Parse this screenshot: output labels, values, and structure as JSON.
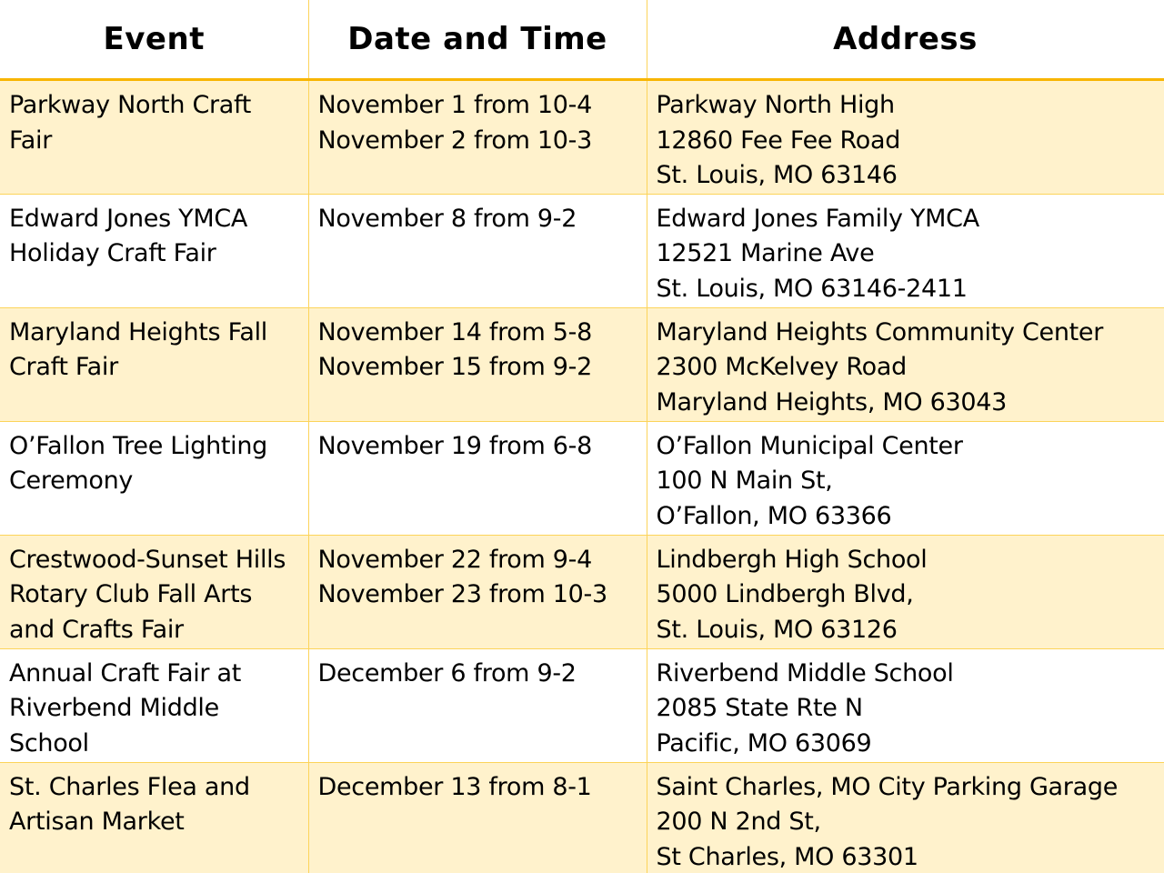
{
  "headers": [
    "Event",
    "Date and Time",
    "Address"
  ],
  "rows": [
    {
      "event": [
        "Parkway North Craft",
        "Fair"
      ],
      "date": [
        "November 1 from 10-4",
        "November 2 from 10-3"
      ],
      "address": [
        "Parkway North High",
        "12860 Fee Fee Road",
        "St. Louis, MO 63146"
      ]
    },
    {
      "event": [
        "Edward Jones YMCA",
        "Holiday Craft Fair"
      ],
      "date": [
        "November 8 from 9-2"
      ],
      "address": [
        "Edward Jones Family YMCA",
        "12521 Marine Ave",
        "St. Louis, MO 63146-2411"
      ]
    },
    {
      "event": [
        "Maryland Heights Fall",
        "Craft Fair"
      ],
      "date": [
        "November 14 from 5-8",
        "November 15 from 9-2"
      ],
      "address": [
        "Maryland Heights Community Center",
        "2300 McKelvey Road",
        "Maryland Heights, MO 63043"
      ]
    },
    {
      "event": [
        "O’Fallon Tree Lighting",
        "Ceremony"
      ],
      "date": [
        "November 19 from 6-8"
      ],
      "address": [
        "O’Fallon Municipal Center",
        "100 N Main St,",
        "O’Fallon, MO 63366"
      ]
    },
    {
      "event": [
        "Crestwood-Sunset Hills",
        "Rotary Club Fall Arts",
        "and Crafts Fair"
      ],
      "date": [
        "November 22 from 9-4",
        "November 23 from 10-3"
      ],
      "address": [
        "Lindbergh High School",
        "5000 Lindbergh Blvd,",
        "St. Louis, MO 63126"
      ]
    },
    {
      "event": [
        "Annual Craft Fair at",
        "Riverbend Middle",
        "School"
      ],
      "date": [
        "December 6 from 9-2"
      ],
      "address": [
        "Riverbend Middle School",
        "2085 State Rte N",
        "Pacific, MO 63069"
      ]
    },
    {
      "event": [
        "St. Charles Flea and",
        "Artisan Market"
      ],
      "date": [
        "December 13 from 8-1"
      ],
      "address": [
        "Saint Charles, MO City Parking Garage",
        "200 N 2nd St,",
        "St Charles, MO 63301"
      ]
    }
  ],
  "colors": {
    "band": "#fff2cc",
    "border": "#fcd45a",
    "header_rule": "#f8b500"
  }
}
